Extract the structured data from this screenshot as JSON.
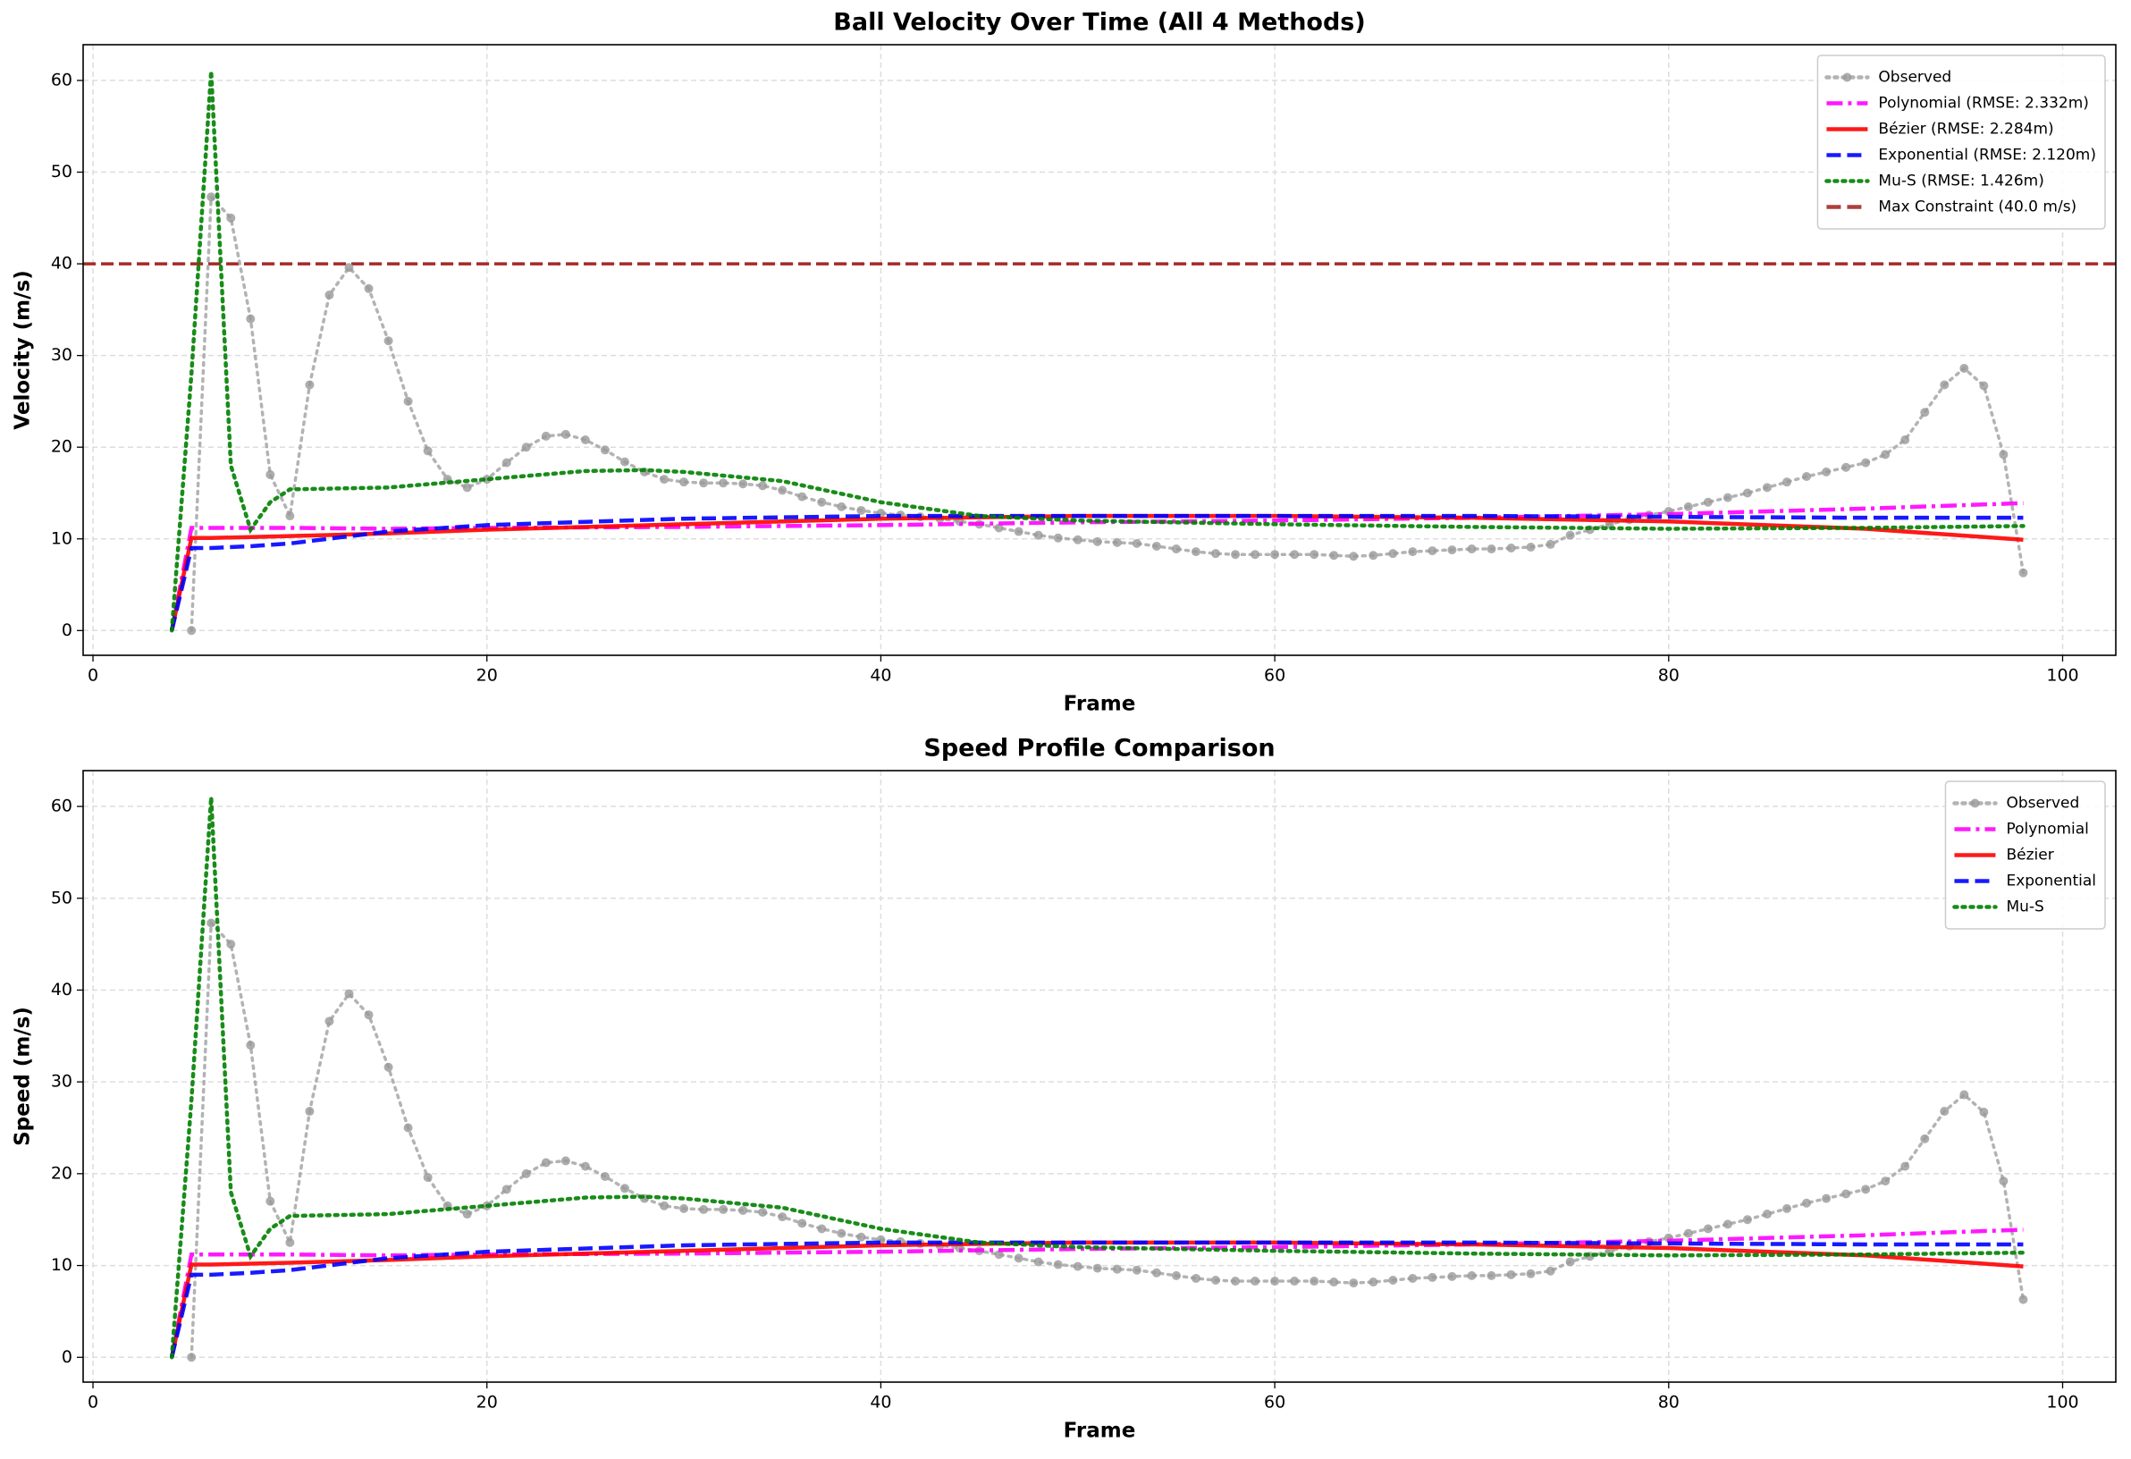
{
  "chart_data": [
    {
      "type": "line",
      "title": "Ball Velocity Over Time (All 4 Methods)",
      "xlabel": "Frame",
      "ylabel": "Velocity (m/s)",
      "xlim": [
        -0.5,
        102.7
      ],
      "ylim": [
        -2.7,
        63.9
      ],
      "xticks": [
        0,
        20,
        40,
        60,
        80,
        100
      ],
      "yticks": [
        0,
        10,
        20,
        30,
        40,
        50,
        60
      ],
      "grid": true,
      "legend": "upper right",
      "series": [
        {
          "name": "Observed",
          "color": "#999999",
          "style": "dotted",
          "markers": true,
          "x": [
            5,
            6,
            7,
            8,
            9,
            10,
            11,
            12,
            13,
            14,
            15,
            16,
            17,
            18,
            19,
            20,
            21,
            22,
            23,
            24,
            25,
            26,
            27,
            28,
            29,
            30,
            31,
            32,
            33,
            34,
            35,
            36,
            37,
            38,
            39,
            40,
            41,
            42,
            43,
            44,
            45,
            46,
            47,
            48,
            49,
            50,
            51,
            52,
            53,
            54,
            55,
            56,
            57,
            58,
            59,
            60,
            61,
            62,
            63,
            64,
            65,
            66,
            67,
            68,
            69,
            70,
            71,
            72,
            73,
            74,
            75,
            76,
            77,
            78,
            79,
            80,
            81,
            82,
            83,
            84,
            85,
            86,
            87,
            88,
            89,
            90,
            91,
            92,
            93,
            94,
            95,
            96,
            97,
            98
          ],
          "values": [
            0,
            47.3,
            45,
            34,
            17,
            12.5,
            26.8,
            36.6,
            39.6,
            37.3,
            31.6,
            25,
            19.6,
            16.5,
            15.6,
            16.5,
            18.3,
            20,
            21.2,
            21.4,
            20.8,
            19.7,
            18.4,
            17.3,
            16.5,
            16.2,
            16.1,
            16.1,
            16,
            15.8,
            15.3,
            14.6,
            14,
            13.5,
            13.1,
            12.8,
            12.6,
            12.4,
            12.2,
            11.9,
            11.6,
            11.2,
            10.8,
            10.4,
            10.1,
            9.9,
            9.7,
            9.6,
            9.5,
            9.2,
            8.9,
            8.6,
            8.4,
            8.3,
            8.3,
            8.3,
            8.3,
            8.3,
            8.2,
            8.1,
            8.2,
            8.4,
            8.6,
            8.7,
            8.8,
            8.9,
            8.9,
            9,
            9.1,
            9.4,
            10.4,
            11,
            11.6,
            12.1,
            12.6,
            13,
            13.5,
            14,
            14.5,
            15,
            15.6,
            16.2,
            16.8,
            17.3,
            17.8,
            18.3,
            19.2,
            20.8,
            23.8,
            26.8,
            28.6,
            26.7,
            19.2,
            6.3
          ]
        },
        {
          "name": "Polynomial (RMSE: 2.332m)",
          "color": "#ff00ff",
          "style": "dashdot",
          "x": [
            4,
            5,
            6,
            8,
            10,
            15,
            20,
            30,
            40,
            50,
            60,
            70,
            80,
            90,
            98
          ],
          "values": [
            0,
            11.2,
            11.2,
            11.2,
            11.2,
            11.1,
            11.2,
            11.3,
            11.5,
            11.8,
            12,
            12.3,
            12.7,
            13.3,
            13.9
          ]
        },
        {
          "name": "Bézier (RMSE: 2.284m)",
          "color": "#ff0000",
          "style": "solid",
          "x": [
            4,
            5,
            6,
            8,
            10,
            15,
            20,
            30,
            40,
            50,
            60,
            70,
            80,
            90,
            98
          ],
          "values": [
            0,
            10.1,
            10.1,
            10.2,
            10.3,
            10.6,
            11,
            11.6,
            12.2,
            12.5,
            12.5,
            12.3,
            11.9,
            11.1,
            9.9
          ]
        },
        {
          "name": "Exponential (RMSE: 2.120m)",
          "color": "#0000ff",
          "style": "dashed",
          "x": [
            4,
            5,
            6,
            8,
            10,
            15,
            20,
            30,
            40,
            50,
            60,
            70,
            80,
            90,
            98
          ],
          "values": [
            0,
            9,
            9,
            9.2,
            9.5,
            10.8,
            11.5,
            12.2,
            12.5,
            12.5,
            12.5,
            12.5,
            12.4,
            12.3,
            12.3
          ]
        },
        {
          "name": "Mu-S (RMSE: 1.426m)",
          "color": "#008000",
          "style": "dotted",
          "x": [
            4,
            5,
            6,
            7,
            8,
            9,
            10,
            15,
            20,
            25,
            28,
            30,
            35,
            40,
            45,
            50,
            60,
            70,
            80,
            90,
            98
          ],
          "values": [
            0,
            28,
            61,
            18,
            11,
            14,
            15.4,
            15.6,
            16.5,
            17.4,
            17.5,
            17.3,
            16.3,
            14,
            12.5,
            12,
            11.6,
            11.3,
            11.1,
            11.2,
            11.4
          ]
        }
      ],
      "hlines": [
        {
          "name": "Max Constraint (40.0 m/s)",
          "value": 40,
          "color": "#a52a2a"
        }
      ]
    },
    {
      "type": "line",
      "title": "Speed Profile Comparison",
      "xlabel": "Frame",
      "ylabel": "Speed (m/s)",
      "xlim": [
        -0.5,
        102.7
      ],
      "ylim": [
        -2.7,
        63.9
      ],
      "xticks": [
        0,
        20,
        40,
        60,
        80,
        100
      ],
      "yticks": [
        0,
        10,
        20,
        30,
        40,
        50,
        60
      ],
      "grid": true,
      "legend": "upper right",
      "series": [
        {
          "name": "Observed",
          "color": "#999999",
          "style": "dotted",
          "markers": true,
          "x": [
            5,
            6,
            7,
            8,
            9,
            10,
            11,
            12,
            13,
            14,
            15,
            16,
            17,
            18,
            19,
            20,
            21,
            22,
            23,
            24,
            25,
            26,
            27,
            28,
            29,
            30,
            31,
            32,
            33,
            34,
            35,
            36,
            37,
            38,
            39,
            40,
            41,
            42,
            43,
            44,
            45,
            46,
            47,
            48,
            49,
            50,
            51,
            52,
            53,
            54,
            55,
            56,
            57,
            58,
            59,
            60,
            61,
            62,
            63,
            64,
            65,
            66,
            67,
            68,
            69,
            70,
            71,
            72,
            73,
            74,
            75,
            76,
            77,
            78,
            79,
            80,
            81,
            82,
            83,
            84,
            85,
            86,
            87,
            88,
            89,
            90,
            91,
            92,
            93,
            94,
            95,
            96,
            97,
            98
          ],
          "values": [
            0,
            47.3,
            45,
            34,
            17,
            12.5,
            26.8,
            36.6,
            39.6,
            37.3,
            31.6,
            25,
            19.6,
            16.5,
            15.6,
            16.5,
            18.3,
            20,
            21.2,
            21.4,
            20.8,
            19.7,
            18.4,
            17.3,
            16.5,
            16.2,
            16.1,
            16.1,
            16,
            15.8,
            15.3,
            14.6,
            14,
            13.5,
            13.1,
            12.8,
            12.6,
            12.4,
            12.2,
            11.9,
            11.6,
            11.2,
            10.8,
            10.4,
            10.1,
            9.9,
            9.7,
            9.6,
            9.5,
            9.2,
            8.9,
            8.6,
            8.4,
            8.3,
            8.3,
            8.3,
            8.3,
            8.3,
            8.2,
            8.1,
            8.2,
            8.4,
            8.6,
            8.7,
            8.8,
            8.9,
            8.9,
            9,
            9.1,
            9.4,
            10.4,
            11,
            11.6,
            12.1,
            12.6,
            13,
            13.5,
            14,
            14.5,
            15,
            15.6,
            16.2,
            16.8,
            17.3,
            17.8,
            18.3,
            19.2,
            20.8,
            23.8,
            26.8,
            28.6,
            26.7,
            19.2,
            6.3
          ]
        },
        {
          "name": "Polynomial",
          "color": "#ff00ff",
          "style": "dashdot",
          "x": [
            4,
            5,
            6,
            8,
            10,
            15,
            20,
            30,
            40,
            50,
            60,
            70,
            80,
            90,
            98
          ],
          "values": [
            0,
            11.2,
            11.2,
            11.2,
            11.2,
            11.1,
            11.2,
            11.3,
            11.5,
            11.8,
            12,
            12.3,
            12.7,
            13.3,
            13.9
          ]
        },
        {
          "name": "Bézier",
          "color": "#ff0000",
          "style": "solid",
          "x": [
            4,
            5,
            6,
            8,
            10,
            15,
            20,
            30,
            40,
            50,
            60,
            70,
            80,
            90,
            98
          ],
          "values": [
            0,
            10.1,
            10.1,
            10.2,
            10.3,
            10.6,
            11,
            11.6,
            12.2,
            12.5,
            12.5,
            12.3,
            11.9,
            11.1,
            9.9
          ]
        },
        {
          "name": "Exponential",
          "color": "#0000ff",
          "style": "dashed",
          "x": [
            4,
            5,
            6,
            8,
            10,
            15,
            20,
            30,
            40,
            50,
            60,
            70,
            80,
            90,
            98
          ],
          "values": [
            0,
            9,
            9,
            9.2,
            9.5,
            10.8,
            11.5,
            12.2,
            12.5,
            12.5,
            12.5,
            12.5,
            12.4,
            12.3,
            12.3
          ]
        },
        {
          "name": "Mu-S",
          "color": "#008000",
          "style": "dotted",
          "x": [
            4,
            5,
            6,
            7,
            8,
            9,
            10,
            15,
            20,
            25,
            28,
            30,
            35,
            40,
            45,
            50,
            60,
            70,
            80,
            90,
            98
          ],
          "values": [
            0,
            28,
            61,
            18,
            11,
            14,
            15.4,
            15.6,
            16.5,
            17.4,
            17.5,
            17.3,
            16.3,
            14,
            12.5,
            12,
            11.6,
            11.3,
            11.1,
            11.2,
            11.4
          ]
        }
      ]
    }
  ]
}
